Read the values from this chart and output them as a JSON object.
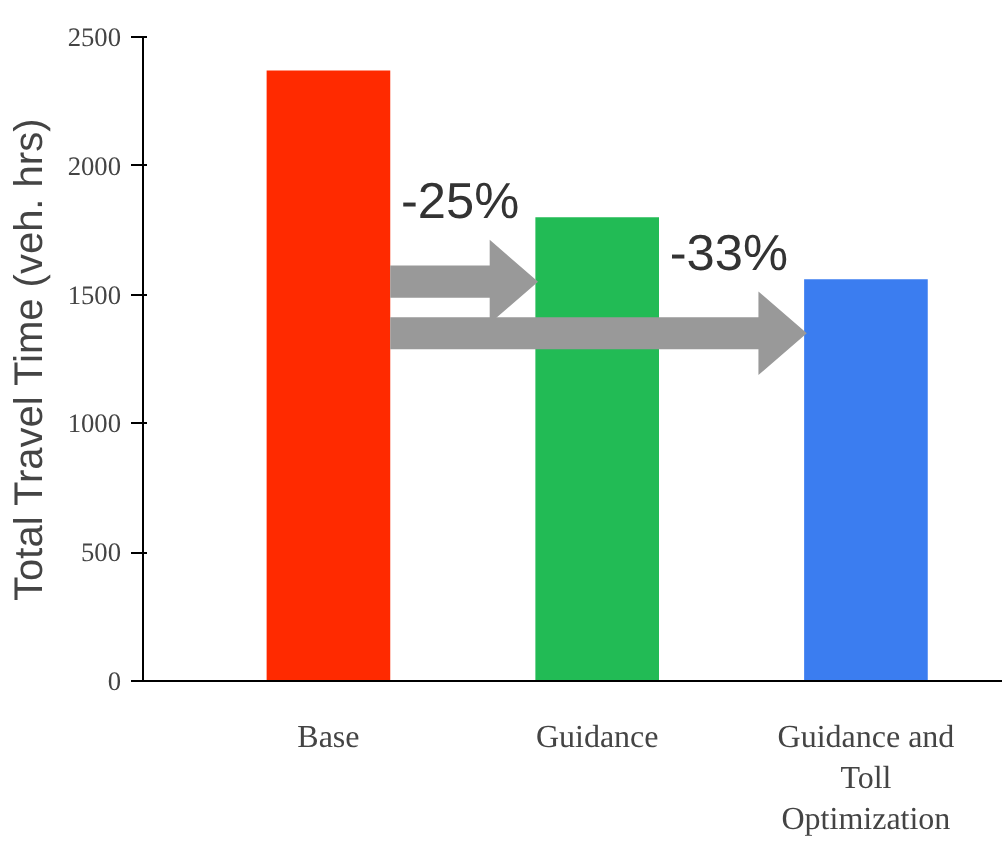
{
  "chart_data": {
    "type": "bar",
    "ylabel": "Total Travel Time (veh. hrs)",
    "categories": [
      "Base",
      "Guidance",
      "Guidance and Toll Optimization"
    ],
    "values": [
      2370,
      1800,
      1560
    ],
    "colors": [
      "#ff2a00",
      "#22bb55",
      "#3b7df0"
    ],
    "ylim": [
      0,
      2500
    ],
    "yticks": [
      0,
      500,
      1000,
      1500,
      2000,
      2500
    ],
    "grid": false,
    "annotations": [
      "-25%",
      "-33%"
    ]
  }
}
